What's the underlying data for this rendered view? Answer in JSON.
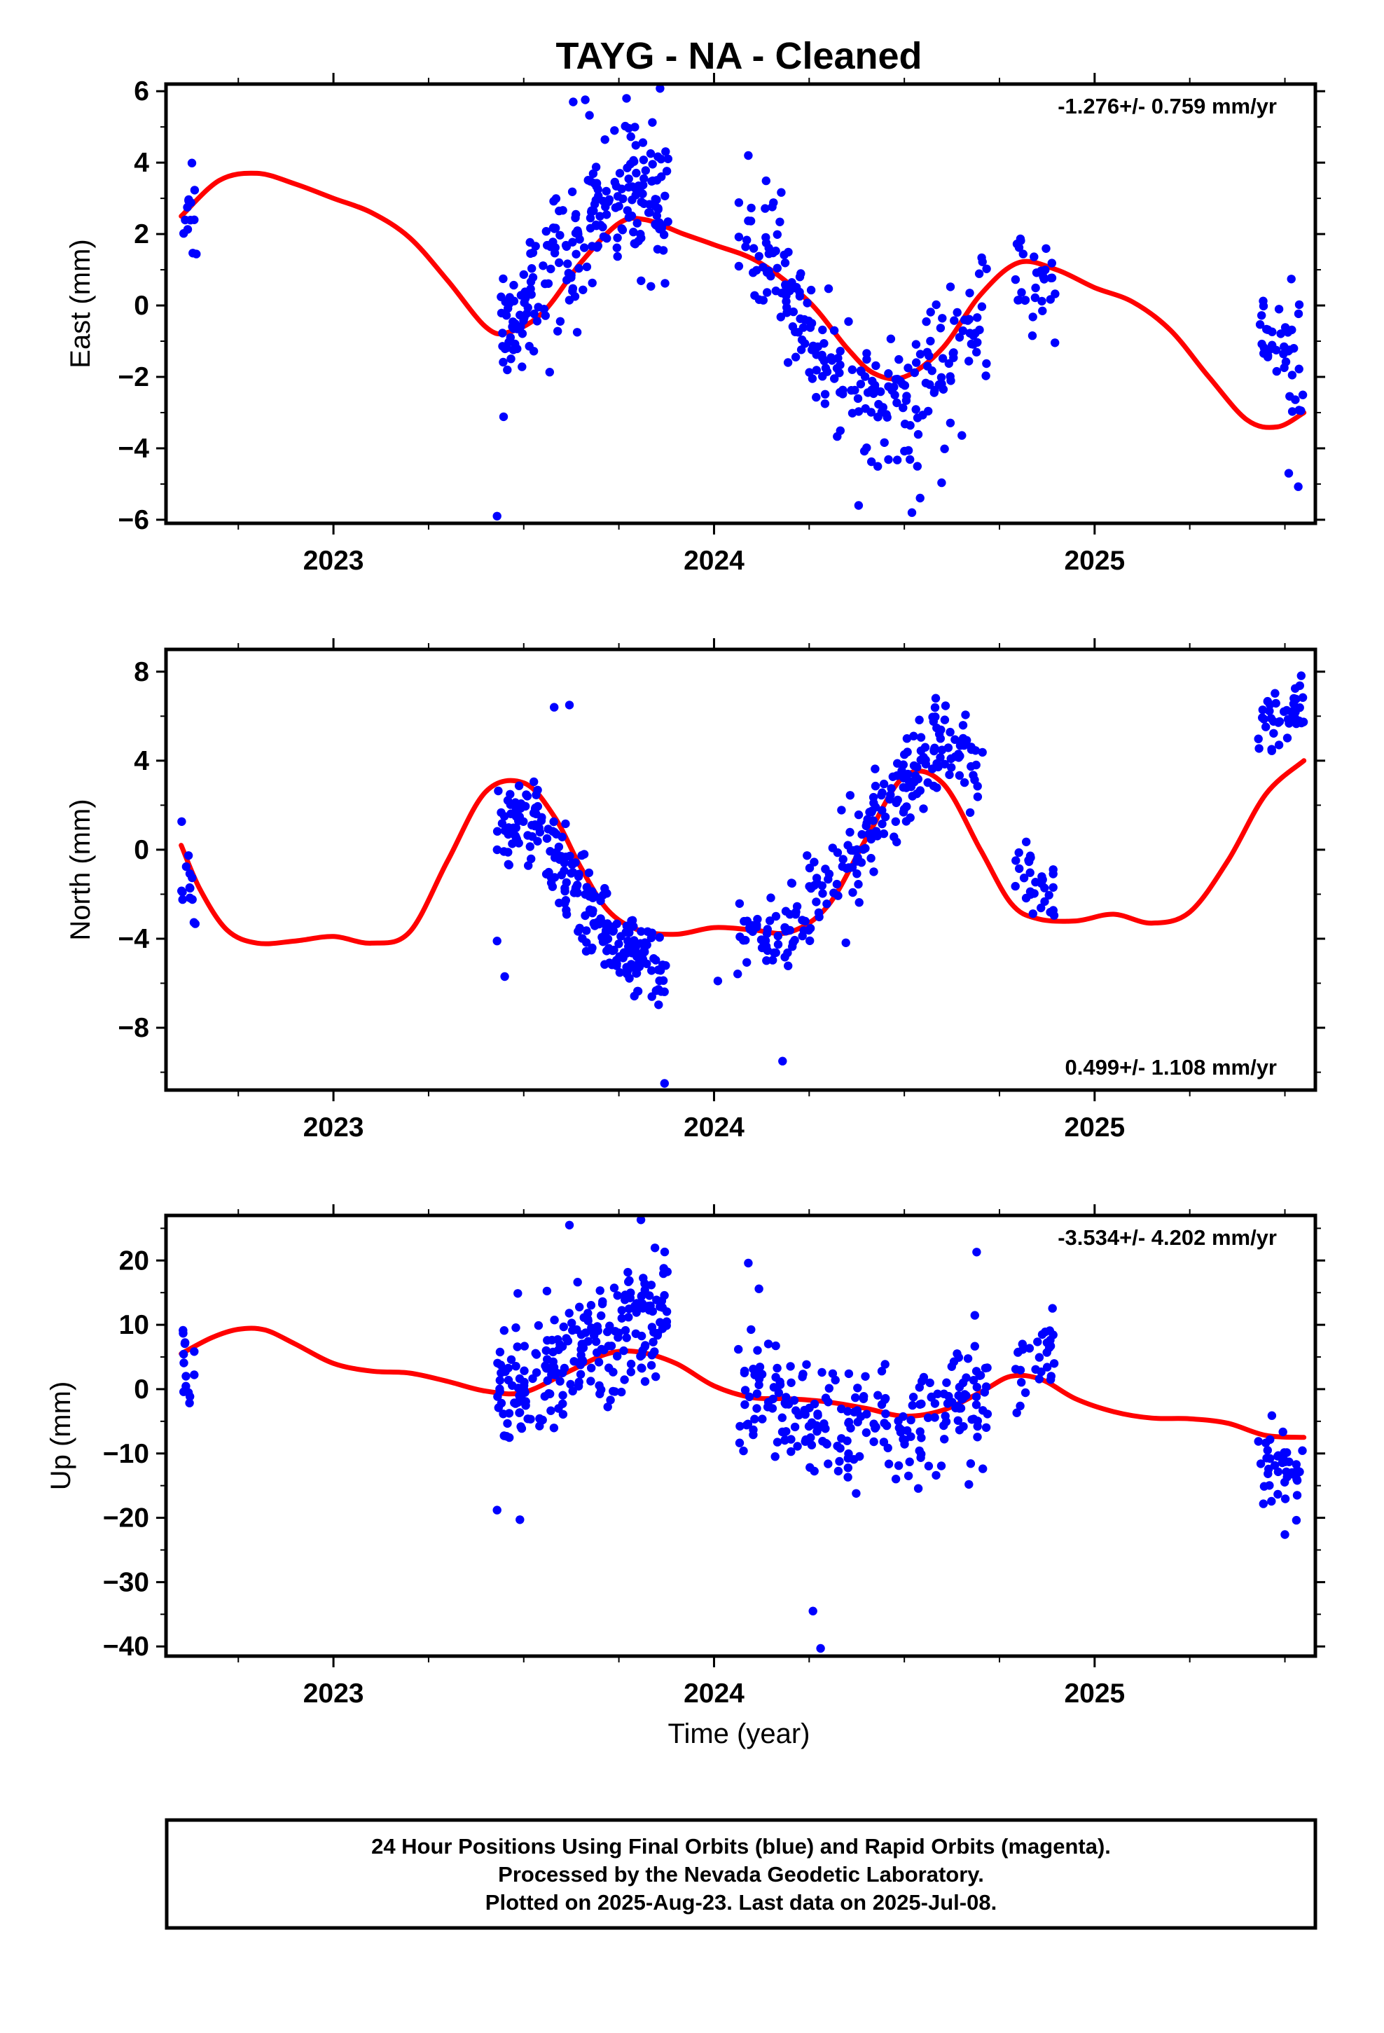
{
  "title": "TAYG  - NA - Cleaned",
  "footer": {
    "line1": "24 Hour Positions Using Final Orbits (blue) and Rapid Orbits (magenta).",
    "line2": "Processed by the Nevada Geodetic Laboratory.",
    "line3": "Plotted on 2025-Aug-23. Last data on 2025-Jul-08."
  },
  "colors": {
    "data_points": "#0000ff",
    "fit_line": "#ff0000",
    "axes": "#000000",
    "background": "#ffffff"
  },
  "chart_data": [
    {
      "type": "scatter",
      "ylabel": "East (mm)",
      "xlabel": "",
      "rate": "-1.276+/- 0.759 mm/yr",
      "rate_position": "top-right",
      "xlim": [
        2022.56,
        2025.58
      ],
      "ylim": [
        -6.1,
        6.2
      ],
      "yticks": [
        -6,
        -4,
        -2,
        0,
        2,
        4,
        6
      ],
      "xticks": [
        2023,
        2024,
        2025
      ],
      "grid": false,
      "points": {
        "clusters": [
          {
            "x": [
              2022.6,
              2022.64
            ],
            "center": [
              2.3
            ],
            "spread": 1.1,
            "n": 14
          },
          {
            "x": [
              2023.43,
              2023.88
            ],
            "center": [
              -1.5,
              0.8,
              2.5,
              3.0,
              2.5
            ],
            "spread": 2.0,
            "n": 230
          },
          {
            "x": [
              2024.06,
              2024.72
            ],
            "center": [
              1.0,
              1.2,
              -1.5,
              -2.8,
              -2.6,
              -2.0,
              0.5
            ],
            "spread": 1.8,
            "n": 230
          },
          {
            "x": [
              2024.79,
              2024.9
            ],
            "center": [
              0.5,
              0.6
            ],
            "spread": 1.4,
            "n": 30
          },
          {
            "x": [
              2025.43,
              2025.55
            ],
            "center": [
              -1.0,
              -1.8
            ],
            "spread": 1.6,
            "n": 40
          }
        ],
        "outliers": [
          [
            2023.43,
            -5.9
          ],
          [
            2023.63,
            5.7
          ],
          [
            2023.77,
            5.8
          ],
          [
            2024.09,
            4.2
          ],
          [
            2024.38,
            -5.6
          ],
          [
            2024.52,
            -5.8
          ],
          [
            2025.51,
            -4.7
          ]
        ]
      },
      "fit_line": {
        "x": [
          2022.6,
          2022.7,
          2022.8,
          2022.9,
          2023.0,
          2023.1,
          2023.2,
          2023.3,
          2023.4,
          2023.46,
          2023.55,
          2023.65,
          2023.75,
          2023.82,
          2023.92,
          2024.0,
          2024.12,
          2024.25,
          2024.35,
          2024.42,
          2024.5,
          2024.6,
          2024.7,
          2024.8,
          2024.9,
          2025.0,
          2025.1,
          2025.2,
          2025.3,
          2025.4,
          2025.48,
          2025.55
        ],
        "y": [
          2.5,
          3.5,
          3.7,
          3.4,
          3.0,
          2.6,
          1.9,
          0.7,
          -0.6,
          -0.75,
          -0.2,
          1.2,
          2.3,
          2.4,
          2.0,
          1.7,
          1.2,
          0.1,
          -1.2,
          -1.9,
          -2.0,
          -1.2,
          0.3,
          1.2,
          1.0,
          0.5,
          0.1,
          -0.7,
          -2.0,
          -3.2,
          -3.4,
          -3.0
        ]
      }
    },
    {
      "type": "scatter",
      "ylabel": "North (mm)",
      "xlabel": "",
      "rate": "0.499+/- 1.108 mm/yr",
      "rate_position": "bottom-right",
      "xlim": [
        2022.56,
        2025.58
      ],
      "ylim": [
        -10.8,
        9.0
      ],
      "yticks": [
        -8,
        -4,
        0,
        4,
        8
      ],
      "xticks": [
        2023,
        2024,
        2025
      ],
      "grid": false,
      "points": {
        "clusters": [
          {
            "x": [
              2022.6,
              2022.64
            ],
            "center": [
              -1.0,
              -2.5
            ],
            "spread": 2.0,
            "n": 14
          },
          {
            "x": [
              2023.43,
              2023.88
            ],
            "center": [
              0.5,
              1.5,
              -1.0,
              -3.5,
              -5.0,
              -5.5
            ],
            "spread": 1.9,
            "n": 230
          },
          {
            "x": [
              2024.06,
              2024.72
            ],
            "center": [
              -3.5,
              -4.0,
              -2.0,
              0.5,
              3.0,
              5.0,
              3.5
            ],
            "spread": 1.9,
            "n": 230
          },
          {
            "x": [
              2024.79,
              2024.9
            ],
            "center": [
              -1.0,
              -2.0
            ],
            "spread": 1.6,
            "n": 30
          },
          {
            "x": [
              2025.43,
              2025.55
            ],
            "center": [
              5.5,
              6.5
            ],
            "spread": 1.3,
            "n": 40
          }
        ],
        "outliers": [
          [
            2023.43,
            -4.1
          ],
          [
            2023.45,
            -5.7
          ],
          [
            2023.58,
            6.4
          ],
          [
            2023.62,
            6.5
          ],
          [
            2023.87,
            -10.5
          ],
          [
            2024.18,
            -9.5
          ],
          [
            2024.01,
            -5.9
          ]
        ]
      },
      "fit_line": {
        "x": [
          2022.6,
          2022.65,
          2022.72,
          2022.8,
          2022.9,
          2023.0,
          2023.1,
          2023.2,
          2023.3,
          2023.4,
          2023.5,
          2023.58,
          2023.65,
          2023.72,
          2023.8,
          2023.9,
          2024.0,
          2024.1,
          2024.2,
          2024.3,
          2024.4,
          2024.5,
          2024.6,
          2024.7,
          2024.78,
          2024.85,
          2024.95,
          2025.05,
          2025.15,
          2025.25,
          2025.35,
          2025.45,
          2025.55
        ],
        "y": [
          0.2,
          -1.8,
          -3.6,
          -4.2,
          -4.1,
          -3.9,
          -4.2,
          -3.7,
          -0.5,
          2.6,
          3.0,
          1.5,
          -0.8,
          -2.7,
          -3.6,
          -3.8,
          -3.5,
          -3.6,
          -3.7,
          -2.5,
          0.5,
          3.3,
          3.0,
          0.0,
          -2.4,
          -3.1,
          -3.2,
          -2.9,
          -3.3,
          -2.8,
          -0.5,
          2.5,
          4.0
        ]
      }
    },
    {
      "type": "scatter",
      "ylabel": "Up (mm)",
      "xlabel": "Time (year)",
      "rate": "-3.534+/- 4.202 mm/yr",
      "rate_position": "top-right",
      "xlim": [
        2022.56,
        2025.58
      ],
      "ylim": [
        -41.5,
        27.0
      ],
      "yticks": [
        -40,
        -30,
        -20,
        -10,
        0,
        10,
        20
      ],
      "xticks": [
        2023,
        2024,
        2025
      ],
      "grid": false,
      "points": {
        "clusters": [
          {
            "x": [
              2022.6,
              2022.64
            ],
            "center": [
              3.0
            ],
            "spread": 7.0,
            "n": 14
          },
          {
            "x": [
              2023.43,
              2023.88
            ],
            "center": [
              -2.0,
              2.0,
              6.0,
              10.0,
              12.0
            ],
            "spread": 9.0,
            "n": 230
          },
          {
            "x": [
              2024.06,
              2024.72
            ],
            "center": [
              -1.0,
              -3.0,
              -5.0,
              -5.5,
              -4.0,
              -1.0
            ],
            "spread": 8.5,
            "n": 230
          },
          {
            "x": [
              2024.79,
              2024.9
            ],
            "center": [
              4.0,
              6.0
            ],
            "spread": 6.0,
            "n": 30
          },
          {
            "x": [
              2025.43,
              2025.55
            ],
            "center": [
              -11.0,
              -13.0
            ],
            "spread": 6.0,
            "n": 40
          }
        ],
        "outliers": [
          [
            2023.43,
            -18.8
          ],
          [
            2023.49,
            -20.3
          ],
          [
            2023.62,
            25.5
          ],
          [
            2024.26,
            -34.5
          ],
          [
            2024.28,
            -40.3
          ],
          [
            2024.09,
            19.6
          ],
          [
            2024.69,
            21.3
          ],
          [
            2025.5,
            -22.6
          ]
        ]
      },
      "fit_line": {
        "x": [
          2022.6,
          2022.68,
          2022.75,
          2022.82,
          2022.9,
          2023.0,
          2023.1,
          2023.2,
          2023.3,
          2023.4,
          2023.5,
          2023.62,
          2023.72,
          2023.8,
          2023.9,
          2024.0,
          2024.1,
          2024.2,
          2024.3,
          2024.4,
          2024.5,
          2024.6,
          2024.7,
          2024.78,
          2024.86,
          2024.95,
          2025.05,
          2025.15,
          2025.25,
          2025.35,
          2025.45,
          2025.55
        ],
        "y": [
          5.5,
          8.0,
          9.3,
          9.2,
          7.0,
          4.0,
          2.8,
          2.5,
          1.2,
          -0.3,
          -0.5,
          2.8,
          5.5,
          5.8,
          4.0,
          0.5,
          -1.3,
          -1.5,
          -2.0,
          -3.0,
          -4.2,
          -3.3,
          -0.5,
          2.0,
          1.5,
          -1.5,
          -3.5,
          -4.5,
          -4.6,
          -5.3,
          -7.2,
          -7.5
        ]
      }
    }
  ]
}
